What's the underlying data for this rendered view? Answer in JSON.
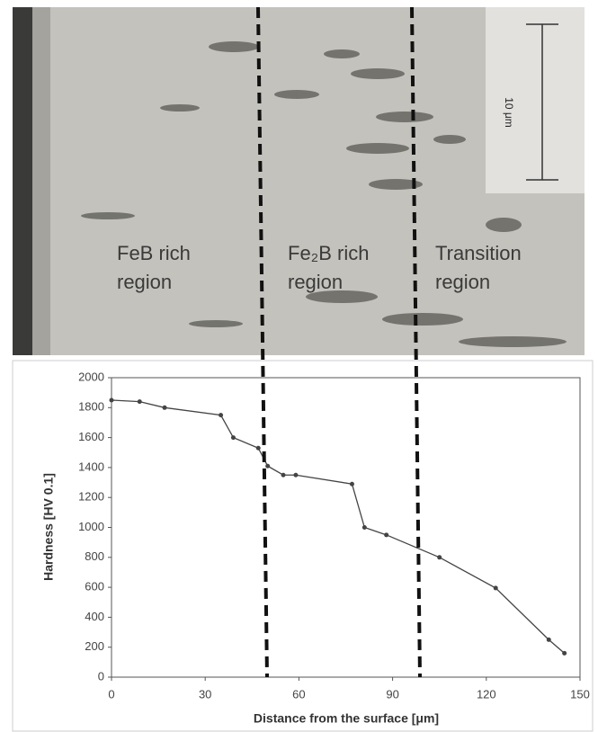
{
  "micrograph": {
    "scale_label": "10 μm",
    "regions": [
      [
        "FeB rich",
        "region"
      ],
      [
        "Fe₂B rich",
        "region"
      ],
      [
        "Transition",
        "region"
      ]
    ]
  },
  "chart_data": {
    "type": "line",
    "x_label": "Distance from the surface [μm]",
    "y_label": "Hardness [HV 0.1]",
    "x": [
      0,
      9,
      17,
      35,
      39,
      47,
      50,
      55,
      59,
      77,
      81,
      88,
      105,
      123,
      140,
      145
    ],
    "values": [
      1850,
      1840,
      1800,
      1750,
      1600,
      1530,
      1410,
      1350,
      1350,
      1290,
      1000,
      950,
      800,
      595,
      250,
      160
    ],
    "color": "#444444",
    "xlim": [
      0,
      150
    ],
    "xticks": [
      0,
      30,
      60,
      90,
      120,
      150
    ],
    "ylim": [
      0,
      2000
    ],
    "yticks": [
      0,
      200,
      400,
      600,
      800,
      1000,
      1200,
      1400,
      1600,
      1800,
      2000
    ]
  }
}
